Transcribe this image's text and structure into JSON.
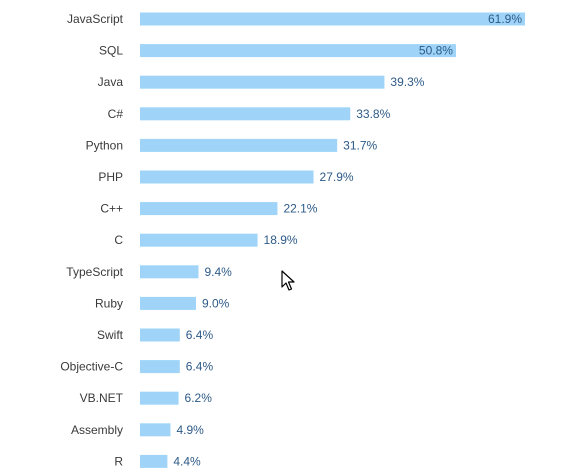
{
  "colors": {
    "bar": "#9fd4f8",
    "value_text": "#2d5a88",
    "category_text": "#3a3a3a"
  },
  "chart_data": {
    "type": "bar",
    "orientation": "horizontal",
    "categories": [
      "JavaScript",
      "SQL",
      "Java",
      "C#",
      "Python",
      "PHP",
      "C++",
      "C",
      "TypeScript",
      "Ruby",
      "Swift",
      "Objective-C",
      "VB.NET",
      "Assembly",
      "R"
    ],
    "values": [
      61.9,
      50.8,
      39.3,
      33.8,
      31.7,
      27.9,
      22.1,
      18.9,
      9.4,
      9.0,
      6.4,
      6.4,
      6.2,
      4.9,
      4.4
    ],
    "value_labels": [
      "61.9%",
      "50.8%",
      "39.3%",
      "33.8%",
      "31.7%",
      "27.9%",
      "22.1%",
      "18.9%",
      "9.4%",
      "9.0%",
      "6.4%",
      "6.4%",
      "6.2%",
      "4.9%",
      "4.4%"
    ],
    "xlim": [
      0,
      61.9
    ],
    "grid": false,
    "legend": "none"
  }
}
